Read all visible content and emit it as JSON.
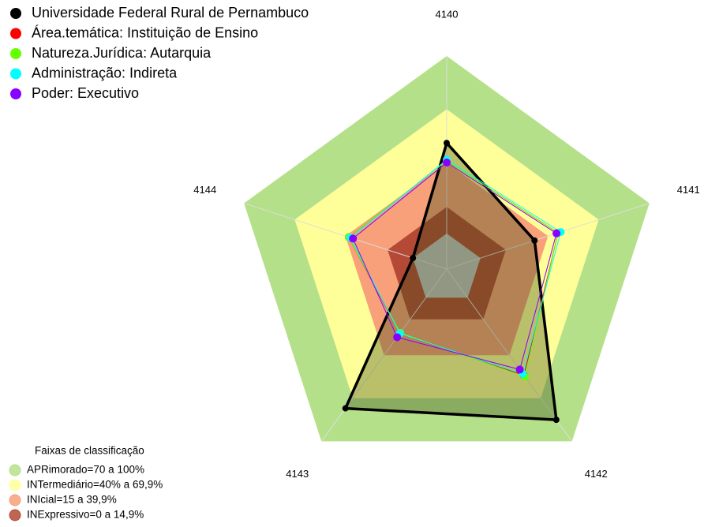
{
  "chart_data": {
    "type": "radar",
    "categories": [
      "4140",
      "4141",
      "4142",
      "4143",
      "4144"
    ],
    "ylim": [
      -20,
      100
    ],
    "series": [
      {
        "name": "Universidade Federal Rural de Pernambuco",
        "color": "#000000",
        "values": [
          51,
          32,
          85,
          77,
          0
        ]
      },
      {
        "name": "Área.temática: Instituição de Ensino",
        "color": "#ff0000",
        "values": [
          41,
          46,
          54,
          25,
          38
        ]
      },
      {
        "name": "Natureza.Jurídica: Autarquia",
        "color": "#66ff00",
        "values": [
          41,
          46,
          55,
          24.5,
          38
        ]
      },
      {
        "name": "Administração: Indireta",
        "color": "#00ffff",
        "values": [
          41.5,
          47.5,
          53,
          25,
          37
        ]
      },
      {
        "name": "Poder: Executivo",
        "color": "#8800ff",
        "values": [
          40,
          45,
          50,
          27.5,
          35.5
        ]
      }
    ],
    "bands_title": "Faixas de classificação",
    "bands": [
      {
        "name": "APRimorado=70 a 100%",
        "color": "#b5e08a",
        "range": [
          70,
          100
        ]
      },
      {
        "name": "INTermediário=40% a 69,9%",
        "color": "#ffff99",
        "range": [
          40,
          69.9
        ]
      },
      {
        "name": "INIcial=15 a 39,9%",
        "color": "#f8a07a",
        "range": [
          15,
          39.9
        ]
      },
      {
        "name": "INExpressivo=0 a 14,9%",
        "color": "#b44a36",
        "range": [
          0,
          14.9
        ]
      }
    ]
  }
}
